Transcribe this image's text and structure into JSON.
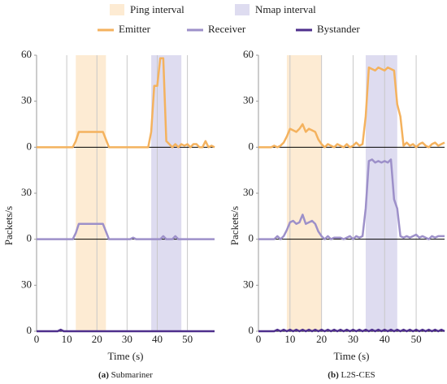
{
  "legend": {
    "intervals": [
      {
        "name": "Ping interval",
        "color": "#fdebd3"
      },
      {
        "name": "Nmap interval",
        "color": "#dedcf0"
      }
    ],
    "series": [
      {
        "name": "Emitter",
        "color": "#f4b25e"
      },
      {
        "name": "Receiver",
        "color": "#9d90c9"
      },
      {
        "name": "Bystander",
        "color": "#4e2f8c"
      }
    ]
  },
  "chart_data": [
    {
      "type": "line",
      "label": "(a)",
      "caption": "Submariner",
      "xlabel": "Time (s)",
      "ylabel": "Packets/s",
      "xlim": [
        0,
        59
      ],
      "xticks": [
        0,
        10,
        20,
        30,
        40,
        50
      ],
      "intervals": [
        [
          13,
          23
        ],
        [
          38,
          48
        ]
      ],
      "x": [
        0,
        1,
        2,
        3,
        4,
        5,
        6,
        7,
        8,
        9,
        10,
        11,
        12,
        13,
        14,
        15,
        16,
        17,
        18,
        19,
        20,
        21,
        22,
        23,
        24,
        25,
        26,
        27,
        28,
        29,
        30,
        31,
        32,
        33,
        34,
        35,
        36,
        37,
        38,
        39,
        40,
        41,
        42,
        43,
        44,
        45,
        46,
        47,
        48,
        49,
        50,
        51,
        52,
        53,
        54,
        55,
        56,
        57,
        58,
        59
      ],
      "series": [
        {
          "ylim": [
            0,
            60
          ],
          "yticks": [
            0,
            30,
            60
          ],
          "values": [
            0,
            0,
            0,
            0,
            0,
            0,
            0,
            0,
            0,
            0,
            0,
            0,
            0,
            4,
            10,
            10,
            10,
            10,
            10,
            10,
            10,
            10,
            10,
            5,
            0,
            0,
            0,
            0,
            0,
            0,
            0,
            0,
            0,
            0,
            0,
            0,
            0,
            0,
            10,
            40,
            40,
            58,
            58,
            4,
            2,
            0,
            2,
            0,
            2,
            1,
            2,
            0,
            2,
            2,
            0,
            0,
            4,
            0,
            1,
            0
          ]
        },
        {
          "ylim": [
            0,
            60
          ],
          "yticks": [
            0,
            30
          ],
          "values": [
            0,
            0,
            0,
            0,
            0,
            0,
            0,
            0,
            0,
            0,
            0,
            0,
            0,
            4,
            10,
            10,
            10,
            10,
            10,
            10,
            10,
            10,
            10,
            5,
            0,
            0,
            0,
            0,
            0,
            0,
            0,
            0,
            1,
            0,
            0,
            0,
            0,
            0,
            0,
            0,
            0,
            0,
            2,
            0,
            0,
            0,
            2,
            0,
            0,
            0,
            0,
            0,
            0,
            0,
            0,
            0,
            0,
            0,
            0,
            0
          ]
        },
        {
          "ylim": [
            0,
            60
          ],
          "yticks": [
            0,
            30
          ],
          "values": [
            0,
            0,
            0,
            0,
            0,
            0,
            0,
            0,
            1,
            0,
            0,
            0,
            0,
            0,
            0,
            0,
            0,
            0,
            0,
            0,
            0,
            0,
            0,
            0,
            0,
            0,
            0,
            0,
            0,
            0,
            0,
            0,
            0,
            0,
            0,
            0,
            0,
            0,
            0,
            0,
            0,
            0,
            0,
            0,
            0,
            0,
            0,
            0,
            0,
            0,
            0,
            0,
            0,
            0,
            0,
            0,
            0,
            0,
            0,
            0
          ]
        }
      ]
    },
    {
      "type": "line",
      "label": "(b)",
      "caption": "L2S-CES",
      "xlabel": "Time (s)",
      "ylabel": "Packets/s",
      "xlim": [
        0,
        59
      ],
      "xticks": [
        0,
        10,
        20,
        30,
        40,
        50
      ],
      "intervals": [
        [
          9,
          20
        ],
        [
          34,
          44
        ]
      ],
      "x": [
        0,
        1,
        2,
        3,
        4,
        5,
        6,
        7,
        8,
        9,
        10,
        11,
        12,
        13,
        14,
        15,
        16,
        17,
        18,
        19,
        20,
        21,
        22,
        23,
        24,
        25,
        26,
        27,
        28,
        29,
        30,
        31,
        32,
        33,
        34,
        35,
        36,
        37,
        38,
        39,
        40,
        41,
        42,
        43,
        44,
        45,
        46,
        47,
        48,
        49,
        50,
        51,
        52,
        53,
        54,
        55,
        56,
        57,
        58,
        59
      ],
      "series": [
        {
          "ylim": [
            0,
            60
          ],
          "yticks": [
            0,
            30,
            60
          ],
          "values": [
            0,
            0,
            0,
            0,
            0,
            1,
            0,
            1,
            3,
            7,
            12,
            11,
            10,
            12,
            15,
            10,
            12,
            11,
            10,
            5,
            2,
            0,
            2,
            1,
            0,
            2,
            1,
            0,
            2,
            0,
            1,
            3,
            1,
            2,
            20,
            52,
            51,
            50,
            52,
            51,
            50,
            52,
            51,
            50,
            28,
            20,
            1,
            3,
            1,
            2,
            0,
            2,
            3,
            1,
            0,
            2,
            3,
            1,
            2,
            3
          ]
        },
        {
          "ylim": [
            0,
            60
          ],
          "yticks": [
            0,
            30
          ],
          "values": [
            0,
            0,
            0,
            0,
            0,
            0,
            2,
            0,
            2,
            6,
            11,
            12,
            10,
            11,
            16,
            10,
            11,
            12,
            10,
            5,
            2,
            0,
            2,
            0,
            1,
            1,
            1,
            0,
            1,
            2,
            0,
            2,
            1,
            2,
            20,
            51,
            52,
            50,
            51,
            50,
            51,
            50,
            52,
            26,
            20,
            2,
            1,
            2,
            1,
            2,
            3,
            1,
            2,
            1,
            0,
            2,
            1,
            2,
            2,
            2
          ]
        },
        {
          "ylim": [
            0,
            60
          ],
          "yticks": [
            0,
            30
          ],
          "values": [
            0,
            0,
            0,
            0,
            0,
            0,
            1,
            0,
            1,
            0,
            1,
            0,
            1,
            0,
            1,
            0,
            1,
            0,
            1,
            0,
            1,
            0,
            1,
            0,
            1,
            0,
            1,
            0,
            1,
            0,
            1,
            0,
            1,
            0,
            1,
            0,
            1,
            0,
            1,
            0,
            1,
            0,
            1,
            0,
            1,
            0,
            1,
            0,
            1,
            0,
            1,
            0,
            1,
            0,
            1,
            0,
            1,
            0,
            1,
            0
          ]
        }
      ]
    }
  ]
}
